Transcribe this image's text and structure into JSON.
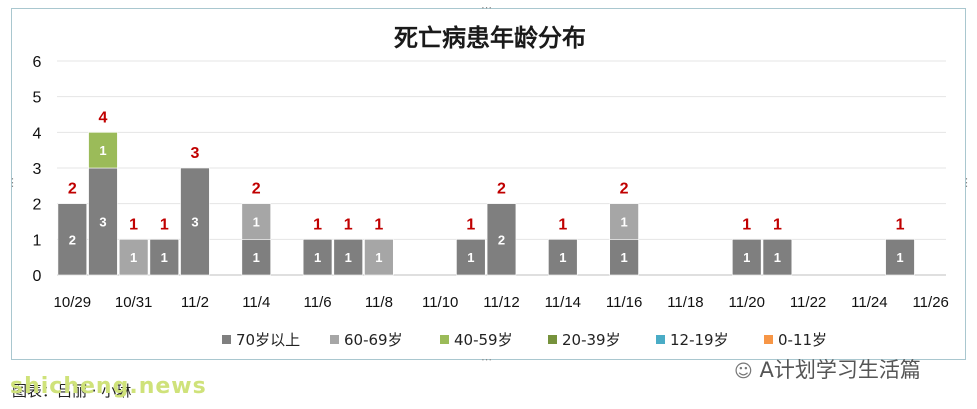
{
  "chart_data": {
    "type": "bar",
    "stacked": true,
    "title": "死亡病患年龄分布",
    "xlabel": "",
    "ylabel": "",
    "ylim": [
      0,
      6
    ],
    "yticks": [
      "0",
      "1",
      "2",
      "3",
      "4",
      "5",
      "6"
    ],
    "categories": [
      "10/29",
      "10/30",
      "10/31",
      "11/1",
      "11/2",
      "11/3",
      "11/4",
      "11/5",
      "11/6",
      "11/7",
      "11/8",
      "11/9",
      "11/10",
      "11/11",
      "11/12",
      "11/13",
      "11/14",
      "11/15",
      "11/16",
      "11/17",
      "11/18",
      "11/19",
      "11/20",
      "11/21",
      "11/22",
      "11/23",
      "11/24",
      "11/25",
      "11/26"
    ],
    "xtick_labels": [
      "10/29",
      "10/31",
      "11/2",
      "11/4",
      "11/6",
      "11/8",
      "11/10",
      "11/12",
      "11/14",
      "11/16",
      "11/18",
      "11/20",
      "11/22",
      "11/24",
      "11/26"
    ],
    "series": [
      {
        "name": "70岁以上",
        "color": "#7f7f7f",
        "values": [
          2,
          3,
          0,
          1,
          3,
          0,
          1,
          0,
          1,
          1,
          0,
          0,
          0,
          1,
          2,
          0,
          1,
          0,
          1,
          0,
          0,
          0,
          1,
          1,
          0,
          0,
          0,
          1,
          0
        ]
      },
      {
        "name": "60-69岁",
        "color": "#a6a6a6",
        "values": [
          0,
          0,
          1,
          0,
          0,
          0,
          1,
          0,
          0,
          0,
          1,
          0,
          0,
          0,
          0,
          0,
          0,
          0,
          1,
          0,
          0,
          0,
          0,
          0,
          0,
          0,
          0,
          0,
          0
        ]
      },
      {
        "name": "40-59岁",
        "color": "#9bbb59",
        "values": [
          0,
          1,
          0,
          0,
          0,
          0,
          0,
          0,
          0,
          0,
          0,
          0,
          0,
          0,
          0,
          0,
          0,
          0,
          0,
          0,
          0,
          0,
          0,
          0,
          0,
          0,
          0,
          0,
          0
        ]
      },
      {
        "name": "20-39岁",
        "color": "#76923c",
        "values": [
          0,
          0,
          0,
          0,
          0,
          0,
          0,
          0,
          0,
          0,
          0,
          0,
          0,
          0,
          0,
          0,
          0,
          0,
          0,
          0,
          0,
          0,
          0,
          0,
          0,
          0,
          0,
          0,
          0
        ]
      },
      {
        "name": "12-19岁",
        "color": "#4aacc6",
        "values": [
          0,
          0,
          0,
          0,
          0,
          0,
          0,
          0,
          0,
          0,
          0,
          0,
          0,
          0,
          0,
          0,
          0,
          0,
          0,
          0,
          0,
          0,
          0,
          0,
          0,
          0,
          0,
          0,
          0
        ]
      },
      {
        "name": "0-11岁",
        "color": "#f79646",
        "values": [
          0,
          0,
          0,
          0,
          0,
          0,
          0,
          0,
          0,
          0,
          0,
          0,
          0,
          0,
          0,
          0,
          0,
          0,
          0,
          0,
          0,
          0,
          0,
          0,
          0,
          0,
          0,
          0,
          0
        ]
      }
    ],
    "totals": [
      2,
      4,
      1,
      1,
      3,
      0,
      2,
      0,
      1,
      1,
      1,
      0,
      0,
      1,
      2,
      0,
      1,
      0,
      2,
      0,
      0,
      0,
      1,
      1,
      0,
      0,
      0,
      1,
      0
    ],
    "total_label_color": "#c00000",
    "grid": true,
    "legend_position": "bottom"
  },
  "footer": {
    "source_text": "图表：吕丽 · 小琳",
    "watermark_left": "shicheng.news",
    "watermark_right": "A计划学习生活篇"
  }
}
